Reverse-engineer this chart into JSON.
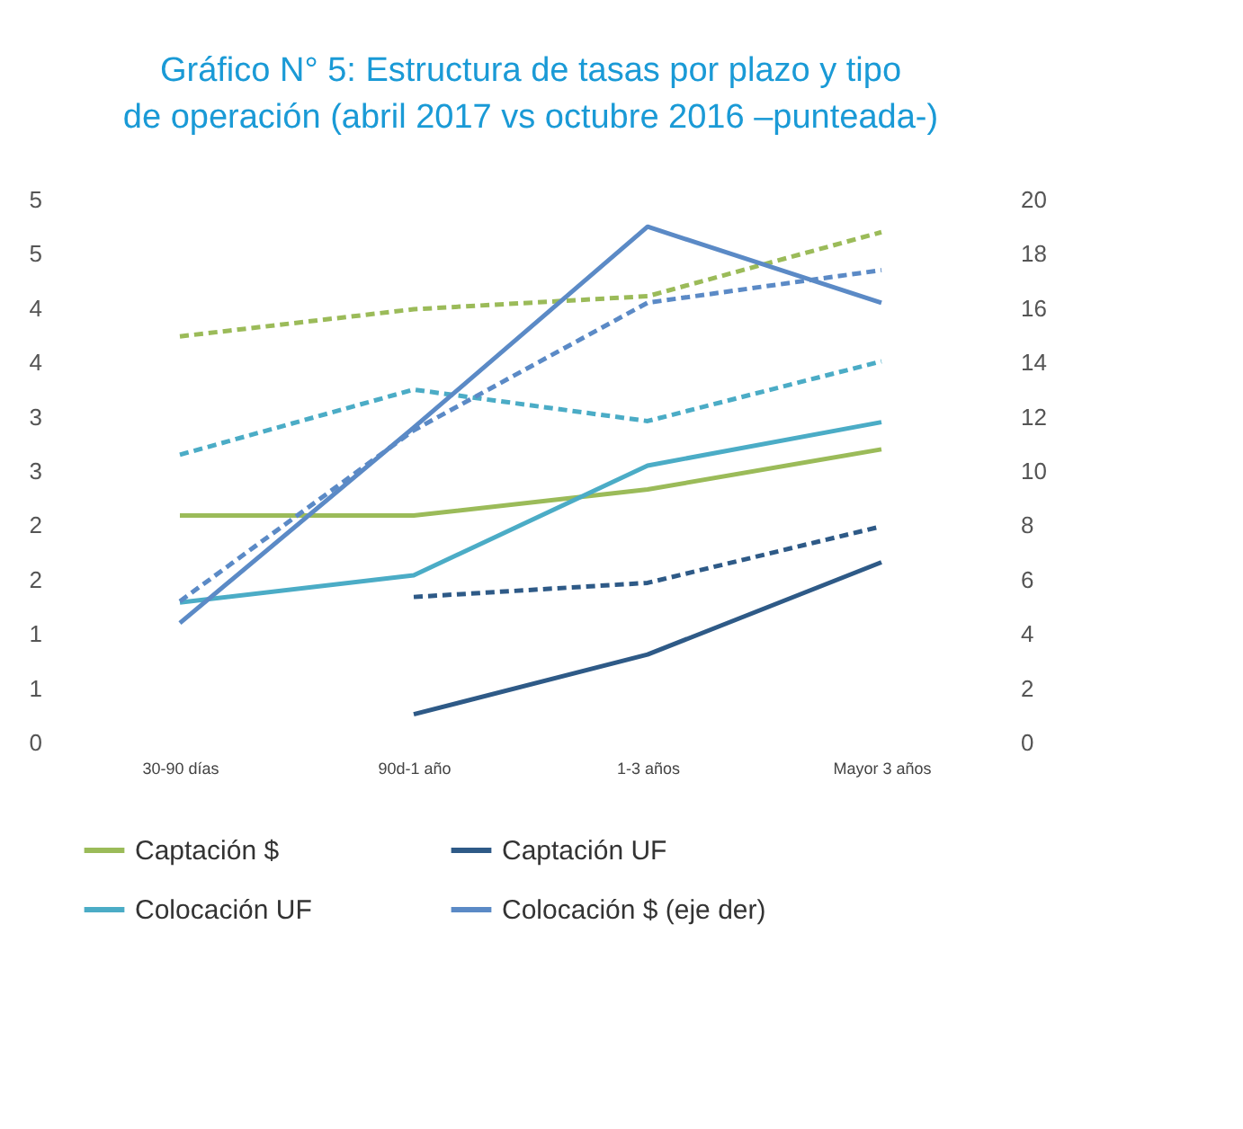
{
  "chart_data": {
    "type": "line",
    "title": "Gráfico N° 5: Estructura de tasas por plazo y tipo de operación (abril 2017 vs octubre 2016 –punteada-)",
    "categories": [
      "30-90 días",
      "90d-1 año",
      "1-3 años",
      "Mayor 3 años"
    ],
    "series": [
      {
        "name": "Captación $",
        "color": "#9bbb59",
        "line_style": "solid",
        "values": [
          2.09,
          2.09,
          2.33,
          2.7
        ]
      },
      {
        "name": "Captación UF",
        "color": "#2e5a87",
        "line_style": "solid",
        "values": [
          null,
          0.26,
          0.81,
          1.66
        ]
      },
      {
        "name": "Colocación UF",
        "color": "#4bacc6",
        "line_style": "solid",
        "values": [
          1.29,
          1.54,
          2.55,
          2.95
        ]
      },
      {
        "name": "Colocación $ (eje der)",
        "color": "#5b8ac6",
        "line_style": "solid",
        "axis": "y2",
        "values": [
          4.4,
          11.6,
          19.0,
          16.2
        ]
      },
      {
        "color": "#9bbb59",
        "line_style": "dashed",
        "values": [
          3.74,
          3.99,
          4.11,
          4.7
        ]
      },
      {
        "color": "#2e5a87",
        "line_style": "dashed",
        "values": [
          null,
          1.34,
          1.47,
          1.99
        ]
      },
      {
        "color": "#4bacc6",
        "line_style": "dashed",
        "values": [
          2.65,
          3.25,
          2.96,
          3.51
        ]
      },
      {
        "color": "#5b8ac6",
        "line_style": "dashed",
        "axis": "y2",
        "values": [
          5.2,
          11.5,
          16.2,
          17.4
        ]
      }
    ],
    "ylim": [
      0,
      5
    ],
    "yticks": [
      0,
      {
        "value": 0.5,
        "label": "1"
      },
      1,
      {
        "value": 1.5,
        "label": "2"
      },
      2,
      {
        "value": 2.5,
        "label": "3"
      },
      3,
      {
        "value": 3.5,
        "label": "4"
      },
      4,
      {
        "value": 4.5,
        "label": "5"
      },
      5
    ],
    "y2lim": [
      0,
      20
    ],
    "y2ticks": [
      0,
      2,
      4,
      6,
      8,
      10,
      12,
      14,
      16,
      18,
      20
    ],
    "legend": "bottom",
    "grid": false
  }
}
